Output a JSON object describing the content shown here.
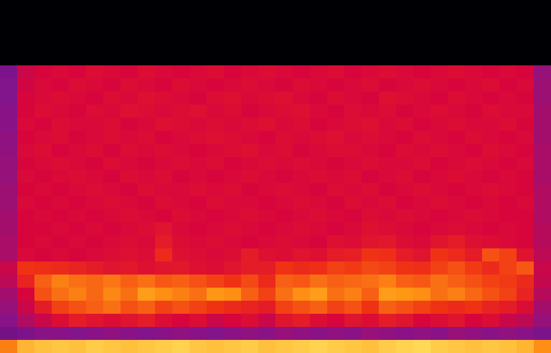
{
  "chart_data": {
    "type": "heatmap",
    "tick_labels": false,
    "zlim": [
      0,
      100
    ],
    "cells": [
      [
        0,
        0,
        0,
        0,
        0,
        0,
        0,
        0,
        0,
        0,
        0,
        0,
        0,
        0,
        0,
        0,
        0,
        0,
        0,
        0,
        0,
        0,
        0,
        0,
        0,
        0,
        0,
        0,
        0,
        0,
        0,
        0
      ],
      [
        0,
        0,
        0,
        0,
        0,
        0,
        0,
        0,
        0,
        0,
        0,
        0,
        0,
        0,
        0,
        0,
        0,
        0,
        0,
        0,
        0,
        0,
        0,
        0,
        0,
        0,
        0,
        0,
        0,
        0,
        0,
        0
      ],
      [
        0,
        0,
        0,
        0,
        0,
        0,
        0,
        0,
        0,
        0,
        0,
        0,
        0,
        0,
        0,
        0,
        0,
        0,
        0,
        0,
        0,
        0,
        0,
        0,
        0,
        0,
        0,
        0,
        0,
        0,
        0,
        0
      ],
      [
        0,
        0,
        0,
        0,
        0,
        0,
        0,
        0,
        0,
        0,
        0,
        0,
        0,
        0,
        0,
        0,
        0,
        0,
        0,
        0,
        0,
        0,
        0,
        0,
        0,
        0,
        0,
        0,
        0,
        0,
        0,
        0
      ],
      [
        0,
        0,
        0,
        0,
        0,
        0,
        0,
        0,
        0,
        0,
        0,
        0,
        0,
        0,
        0,
        0,
        0,
        0,
        0,
        0,
        0,
        0,
        0,
        0,
        0,
        0,
        0,
        0,
        0,
        0,
        0,
        0
      ],
      [
        46,
        58,
        60,
        61,
        60,
        62,
        61,
        60,
        62,
        61,
        60,
        61,
        62,
        60,
        61,
        62,
        61,
        60,
        61,
        62,
        60,
        61,
        62,
        61,
        60,
        61,
        62,
        61,
        60,
        61,
        60,
        50
      ],
      [
        47,
        59,
        61,
        60,
        62,
        61,
        60,
        62,
        61,
        60,
        62,
        61,
        60,
        61,
        62,
        61,
        60,
        62,
        61,
        60,
        61,
        62,
        60,
        61,
        62,
        61,
        60,
        61,
        62,
        60,
        61,
        51
      ],
      [
        47,
        60,
        61,
        62,
        61,
        60,
        62,
        61,
        63,
        62,
        61,
        60,
        62,
        63,
        61,
        62,
        63,
        61,
        60,
        62,
        61,
        60,
        63,
        62,
        61,
        60,
        62,
        61,
        60,
        61,
        60,
        51
      ],
      [
        48,
        60,
        62,
        61,
        60,
        62,
        61,
        63,
        62,
        61,
        62,
        63,
        61,
        62,
        60,
        61,
        62,
        63,
        61,
        60,
        62,
        61,
        62,
        60,
        61,
        62,
        61,
        60,
        62,
        61,
        61,
        52
      ],
      [
        48,
        61,
        60,
        62,
        61,
        61,
        62,
        60,
        61,
        63,
        62,
        61,
        62,
        61,
        62,
        63,
        61,
        62,
        60,
        61,
        62,
        63,
        61,
        62,
        60,
        61,
        62,
        61,
        61,
        62,
        60,
        52
      ],
      [
        49,
        60,
        61,
        62,
        60,
        61,
        62,
        61,
        62,
        60,
        61,
        62,
        63,
        62,
        61,
        60,
        62,
        61,
        62,
        63,
        61,
        62,
        61,
        60,
        62,
        61,
        60,
        62,
        61,
        60,
        61,
        52
      ],
      [
        49,
        61,
        62,
        60,
        61,
        62,
        60,
        62,
        61,
        62,
        61,
        60,
        61,
        62,
        63,
        61,
        62,
        60,
        61,
        62,
        62,
        61,
        60,
        62,
        61,
        62,
        61,
        60,
        62,
        61,
        60,
        53
      ],
      [
        50,
        60,
        61,
        62,
        61,
        60,
        62,
        61,
        60,
        61,
        62,
        61,
        62,
        60,
        61,
        62,
        61,
        62,
        61,
        60,
        61,
        62,
        61,
        61,
        62,
        60,
        61,
        62,
        61,
        60,
        61,
        53
      ],
      [
        50,
        61,
        60,
        61,
        62,
        61,
        60,
        62,
        61,
        62,
        60,
        61,
        60,
        61,
        62,
        61,
        60,
        61,
        62,
        61,
        62,
        60,
        61,
        62,
        60,
        61,
        62,
        61,
        60,
        61,
        60,
        53
      ],
      [
        51,
        60,
        61,
        60,
        61,
        62,
        61,
        60,
        62,
        61,
        61,
        62,
        61,
        62,
        60,
        61,
        62,
        61,
        60,
        62,
        61,
        62,
        60,
        61,
        62,
        61,
        60,
        61,
        62,
        61,
        60,
        54
      ],
      [
        51,
        61,
        60,
        61,
        60,
        61,
        62,
        61,
        60,
        62,
        61,
        60,
        62,
        61,
        61,
        60,
        61,
        62,
        61,
        60,
        62,
        61,
        62,
        60,
        61,
        62,
        61,
        60,
        61,
        60,
        61,
        54
      ],
      [
        52,
        60,
        61,
        60,
        61,
        60,
        61,
        62,
        61,
        60,
        62,
        61,
        60,
        61,
        62,
        61,
        60,
        61,
        62,
        61,
        60,
        62,
        61,
        62,
        61,
        60,
        61,
        62,
        61,
        60,
        60,
        54
      ],
      [
        52,
        60,
        60,
        61,
        60,
        61,
        60,
        61,
        62,
        64,
        61,
        60,
        61,
        62,
        61,
        60,
        61,
        62,
        61,
        60,
        61,
        63,
        62,
        61,
        60,
        61,
        62,
        61,
        60,
        61,
        60,
        55
      ],
      [
        53,
        60,
        61,
        60,
        61,
        60,
        61,
        62,
        61,
        66,
        62,
        61,
        62,
        61,
        60,
        61,
        62,
        61,
        60,
        63,
        62,
        64,
        65,
        62,
        61,
        64,
        66,
        63,
        62,
        61,
        60,
        55
      ],
      [
        53,
        61,
        60,
        61,
        60,
        61,
        62,
        63,
        62,
        70,
        63,
        62,
        61,
        62,
        66,
        63,
        62,
        64,
        63,
        66,
        67,
        72,
        71,
        66,
        64,
        72,
        70,
        66,
        76,
        74,
        64,
        56
      ],
      [
        58,
        72,
        71,
        70,
        68,
        66,
        64,
        65,
        63,
        64,
        65,
        63,
        62,
        64,
        66,
        66,
        72,
        70,
        71,
        74,
        73,
        75,
        74,
        72,
        71,
        74,
        76,
        73,
        70,
        74,
        77,
        58
      ],
      [
        56,
        68,
        78,
        82,
        80,
        79,
        81,
        78,
        80,
        77,
        78,
        76,
        74,
        72,
        75,
        70,
        78,
        77,
        80,
        78,
        79,
        80,
        82,
        78,
        77,
        80,
        78,
        76,
        74,
        73,
        70,
        57
      ],
      [
        52,
        60,
        76,
        80,
        82,
        79,
        83,
        80,
        86,
        84,
        82,
        80,
        85,
        84,
        78,
        74,
        80,
        84,
        86,
        80,
        82,
        78,
        86,
        85,
        84,
        80,
        82,
        79,
        76,
        74,
        68,
        55
      ],
      [
        50,
        58,
        66,
        74,
        76,
        78,
        80,
        76,
        78,
        74,
        76,
        74,
        72,
        70,
        68,
        66,
        74,
        76,
        78,
        74,
        76,
        72,
        78,
        76,
        74,
        72,
        70,
        72,
        68,
        66,
        62,
        52
      ],
      [
        48,
        54,
        58,
        62,
        66,
        64,
        62,
        64,
        66,
        62,
        60,
        62,
        58,
        60,
        62,
        58,
        64,
        66,
        62,
        60,
        64,
        62,
        66,
        64,
        60,
        62,
        64,
        60,
        62,
        58,
        56,
        50
      ],
      [
        44,
        46,
        48,
        48,
        47,
        48,
        49,
        48,
        47,
        48,
        49,
        48,
        47,
        48,
        49,
        48,
        50,
        49,
        48,
        49,
        48,
        50,
        49,
        48,
        49,
        48,
        50,
        49,
        48,
        49,
        48,
        46
      ],
      [
        82,
        90,
        92,
        93,
        92,
        94,
        93,
        92,
        93,
        94,
        95,
        93,
        92,
        93,
        94,
        92,
        93,
        94,
        95,
        94,
        93,
        92,
        94,
        95,
        96,
        94,
        93,
        92,
        93,
        92,
        90,
        84
      ]
    ]
  }
}
